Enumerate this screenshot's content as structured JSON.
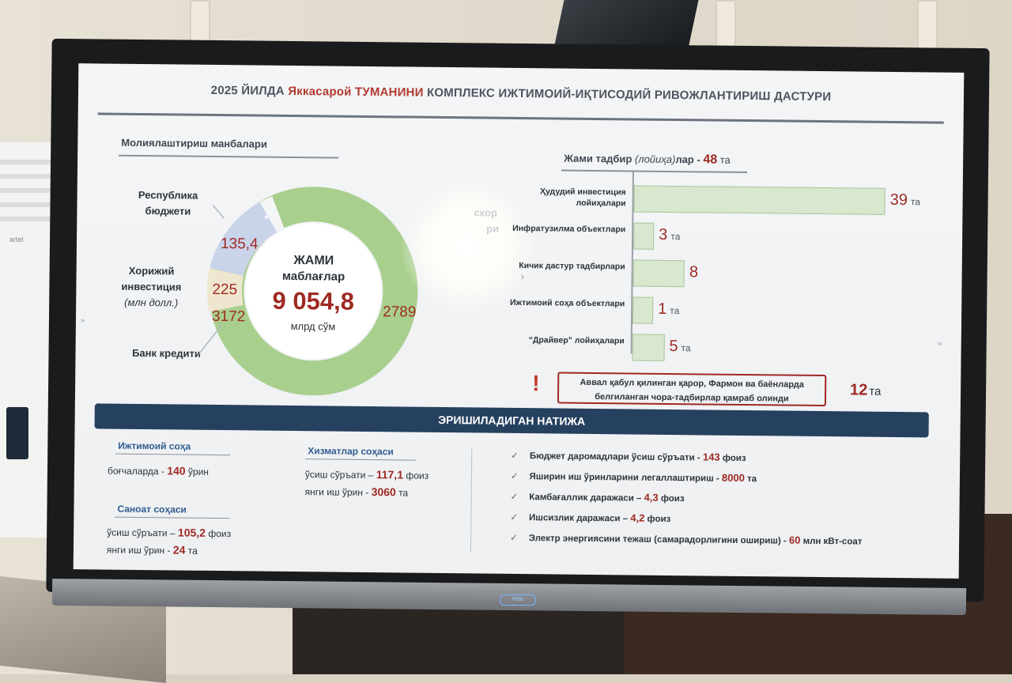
{
  "title": {
    "part1": "2025 ЙИЛДА",
    "district": "Яккасарой",
    "part2": "ТУМАНИНИ",
    "part3": "КОМПЛЕКС ИЖТИМОИЙ-ИҚТИСОДИЙ РИВОЖЛАНТИРИШ ДАСТУРИ"
  },
  "funding": {
    "heading": "Молиялаштириш манбалари",
    "center_line1": "ЖАМИ",
    "center_line2": "маблағлар",
    "total": "9 054,8",
    "unit": "млрд сўм",
    "segments": [
      {
        "label": "Республика бюджети",
        "value": "135,4",
        "color": "#c9d3ea"
      },
      {
        "label": "Хорижий инвестиция",
        "sublabel": "(млн долл.)",
        "value": "225",
        "color": "#efe6cf"
      },
      {
        "label": "Банк кредити",
        "value": "3172",
        "color": "#a9cf8e"
      },
      {
        "label": "",
        "value": "2789",
        "color": "#a9cf8e"
      }
    ],
    "glare_label_a": "скор",
    "glare_label_b": "ри"
  },
  "projects": {
    "heading_a": "Жами тадбир",
    "heading_b": "(лойиҳа)",
    "heading_c": "лар -",
    "total": "48",
    "unit": "та",
    "bars": [
      {
        "label": "Ҳудудий инвестиция лойиҳалари",
        "value": 39,
        "display": "39",
        "unit": "та"
      },
      {
        "label": "Инфратузилма объектлари",
        "value": 3,
        "display": "3",
        "unit": "та"
      },
      {
        "label": "Кичик дастур тадбирлари",
        "value": 8,
        "display": "8",
        "unit": ""
      },
      {
        "label": "Ижтимоий соҳа объектлари",
        "value": 1,
        "display": "1",
        "unit": "та"
      },
      {
        "label": "“Драйвер” лойиҳалари",
        "value": 5,
        "display": "5",
        "unit": "та"
      }
    ]
  },
  "note": {
    "mark": "!",
    "line1": "Аввал қабул қилинган қарор, Фармон ва баёнларда",
    "line2": "белгиланган чора-тадбирлар қамраб олинди",
    "value": "12",
    "unit": "та"
  },
  "results": {
    "heading": "ЭРИШИЛАДИГАН НАТИЖА",
    "social": {
      "head": "Ижтимоий соҳа",
      "line_a": "боғчаларда -",
      "line_v": "140",
      "line_b": "ўрин"
    },
    "industry": {
      "head": "Саноат соҳаси",
      "l1a": "ўсиш сўръати –",
      "l1v": "105,2",
      "l1b": "фоиз",
      "l2a": "янги иш ўрин -",
      "l2v": "24",
      "l2b": "та"
    },
    "services": {
      "head": "Хизматлар соҳаси",
      "l1a": "ўсиш сўръати –",
      "l1v": "117,1",
      "l1b": "фоиз",
      "l2a": "янги иш ўрин -",
      "l2v": "3060",
      "l2b": "та"
    },
    "checks": [
      {
        "a": "Бюджет даромадлари ўсиш сўръати -",
        "v": "143",
        "b": "фоиз"
      },
      {
        "a": "Яширин иш ўринларини легаллаштириш -",
        "v": "8000",
        "b": "та"
      },
      {
        "a": "Камбағаллик даражаси –",
        "v": "4,3",
        "b": "фоиз"
      },
      {
        "a": "Ишсизлик даражаси –",
        "v": "4,2",
        "b": "фоиз"
      },
      {
        "a": "Электр энергиясини тежаш (самарадорлигини ошириш) -",
        "v": "60",
        "b": "млн кВт-соат"
      }
    ]
  },
  "device": {
    "brand_badge": "Ptilo",
    "ac_brand": "artel"
  }
}
